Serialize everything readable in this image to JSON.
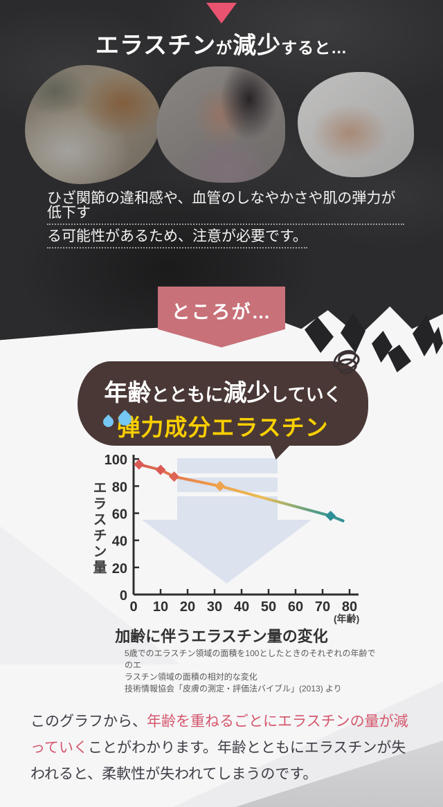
{
  "header": {
    "title_seg1": "エラスチン",
    "title_seg2": "が",
    "title_seg3": "減少",
    "title_seg4": "すると…"
  },
  "intro": {
    "line1": "ひざ関節の違和感や、血管のしなやかさや肌の弾力が低下す",
    "line2": "る可能性があるため、注意が必要です。"
  },
  "banner": {
    "label": "ところが…"
  },
  "bubble": {
    "line1_seg1": "年齢",
    "line1_seg2": "とともに",
    "line1_seg3": "減少",
    "line1_seg4": "していく",
    "line2": "弾力成分エラスチン"
  },
  "chart": {
    "title": "加齢に伴うエラスチン量の変化",
    "ylabel": "エラスチン量",
    "x_unit": "(年齢)",
    "footnote_lines": [
      "5歳でのエラスチン領域の面積を100としたときのそれぞれの年齢でのエ",
      "ラスチン領域の面積の相対的な変化",
      "技術情報協会「皮膚の測定・評価法バイブル」(2013) より"
    ]
  },
  "chart_data": {
    "type": "line",
    "title": "加齢に伴うエラスチン量の変化",
    "xlabel": "(年齢)",
    "ylabel": "エラスチン量",
    "xlim": [
      0,
      80
    ],
    "ylim": [
      0,
      100
    ],
    "x_ticks": [
      0,
      10,
      20,
      30,
      40,
      50,
      60,
      70,
      80
    ],
    "y_ticks": [
      0,
      20,
      40,
      60,
      80,
      100
    ],
    "grid": false,
    "legend": false,
    "series": [
      {
        "name": "エラスチン量",
        "x": [
          2,
          10,
          15,
          32,
          73
        ],
        "y": [
          96,
          92,
          87,
          80,
          58
        ],
        "line_end": {
          "x": 78,
          "y": 54
        },
        "marker": "diamond",
        "marker_colors": [
          "#d95b54",
          "#d95b54",
          "#dd6353",
          "#f0a44e",
          "#2d8e96"
        ],
        "line_gradient": [
          {
            "o": 0,
            "c": "#d65750"
          },
          {
            "o": 0.38,
            "c": "#ef9f4a"
          },
          {
            "o": 0.6,
            "c": "#e9bd55"
          },
          {
            "o": 0.85,
            "c": "#4f9c87"
          },
          {
            "o": 1,
            "c": "#2d8d96"
          }
        ]
      }
    ]
  },
  "conclusion": {
    "seg1": "このグラフから、",
    "seg2_highlight": "年齢を重ねるごとにエラスチンの量が減っていく",
    "seg3": "ことがわかります。年齢とともにエラスチンが失われると、柔軟性が失われてしまうのです。"
  },
  "colors": {
    "accent_pink": "#e9536f",
    "banner_pink": "#c87179",
    "bubble_brown": "#4a3836",
    "highlight_yellow": "#f8cf00",
    "drop_blue": "#74c8f3",
    "highlight_text_pink": "#d4576c",
    "arrow_gray": "#dce2ee",
    "dark_bg": "#2b2b2d"
  }
}
